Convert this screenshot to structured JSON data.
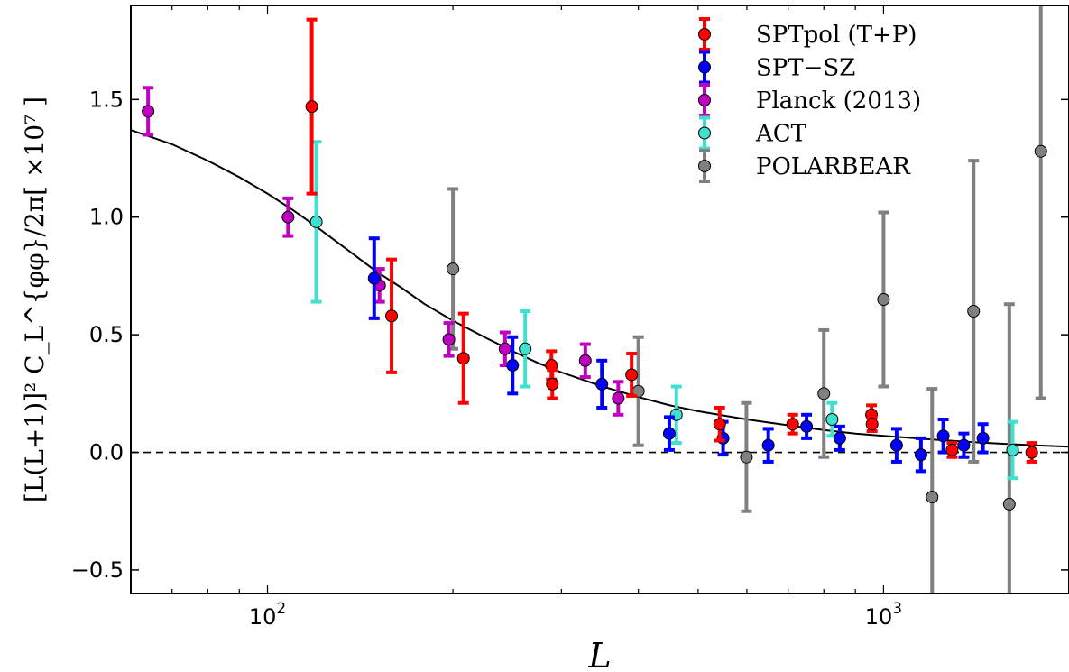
{
  "chart_data": {
    "type": "scatter",
    "xlabel": "L",
    "ylabel": "[L(L+1)]² C_L^{φφ}/2π[ ×10⁷ ]",
    "xscale": "log",
    "xlim": [
      60,
      2000
    ],
    "ylim": [
      -0.6,
      1.9
    ],
    "yticks": [
      -0.5,
      0.0,
      0.5,
      1.0,
      1.5
    ],
    "ytick_labels": [
      "−0.5",
      "0.0",
      "0.5",
      "1.0",
      "1.5"
    ],
    "xticks": [
      {
        "value": 100,
        "base": "10",
        "exp": "2"
      },
      {
        "value": 1000,
        "base": "10",
        "exp": "3"
      }
    ],
    "zero_line": 0,
    "legend_position": "top-right",
    "series": [
      {
        "name": "SPTpol (T+P)",
        "color": "#ff0000",
        "points": [
          {
            "x": 118,
            "y": 1.47,
            "err": 0.37
          },
          {
            "x": 159,
            "y": 0.58,
            "err": 0.24
          },
          {
            "x": 208,
            "y": 0.4,
            "err": 0.19
          },
          {
            "x": 289,
            "y": 0.37,
            "err": 0.06
          },
          {
            "x": 290,
            "y": 0.29,
            "err": 0.06
          },
          {
            "x": 390,
            "y": 0.33,
            "err": 0.09
          },
          {
            "x": 542,
            "y": 0.12,
            "err": 0.07
          },
          {
            "x": 712,
            "y": 0.12,
            "err": 0.04
          },
          {
            "x": 956,
            "y": 0.16,
            "err": 0.04
          },
          {
            "x": 958,
            "y": 0.12,
            "err": 0.03
          },
          {
            "x": 1292,
            "y": 0.01,
            "err": 0.03
          },
          {
            "x": 1740,
            "y": 0.0,
            "err": 0.04
          }
        ]
      },
      {
        "name": "SPT−SZ",
        "color": "#0000ff",
        "points": [
          {
            "x": 149,
            "y": 0.74,
            "err": 0.17
          },
          {
            "x": 250,
            "y": 0.37,
            "err": 0.12
          },
          {
            "x": 349,
            "y": 0.29,
            "err": 0.1
          },
          {
            "x": 449,
            "y": 0.08,
            "err": 0.07
          },
          {
            "x": 549,
            "y": 0.06,
            "err": 0.07
          },
          {
            "x": 650,
            "y": 0.03,
            "err": 0.07
          },
          {
            "x": 750,
            "y": 0.11,
            "err": 0.05
          },
          {
            "x": 849,
            "y": 0.06,
            "err": 0.05
          },
          {
            "x": 1050,
            "y": 0.03,
            "err": 0.07
          },
          {
            "x": 1150,
            "y": -0.01,
            "err": 0.07
          },
          {
            "x": 1250,
            "y": 0.07,
            "err": 0.07
          },
          {
            "x": 1350,
            "y": 0.03,
            "err": 0.05
          },
          {
            "x": 1450,
            "y": 0.06,
            "err": 0.06
          }
        ]
      },
      {
        "name": "Planck (2013)",
        "color": "#bf00bf",
        "points": [
          {
            "x": 64,
            "y": 1.45,
            "err": 0.1
          },
          {
            "x": 108,
            "y": 1.0,
            "err": 0.08
          },
          {
            "x": 152,
            "y": 0.71,
            "err": 0.07
          },
          {
            "x": 197,
            "y": 0.48,
            "err": 0.07
          },
          {
            "x": 243,
            "y": 0.44,
            "err": 0.07
          },
          {
            "x": 328,
            "y": 0.39,
            "err": 0.07
          },
          {
            "x": 371,
            "y": 0.23,
            "err": 0.07
          }
        ]
      },
      {
        "name": "ACT",
        "color": "#40e0d0",
        "points": [
          {
            "x": 120,
            "y": 0.98,
            "err": 0.34
          },
          {
            "x": 262,
            "y": 0.44,
            "err": 0.16
          },
          {
            "x": 461,
            "y": 0.16,
            "err": 0.12
          },
          {
            "x": 825,
            "y": 0.14,
            "err": 0.07
          },
          {
            "x": 1620,
            "y": 0.01,
            "err": 0.12
          }
        ]
      },
      {
        "name": "POLARBEAR",
        "color": "#808080",
        "points": [
          {
            "x": 200,
            "y": 0.78,
            "err": 0.34
          },
          {
            "x": 400,
            "y": 0.26,
            "err": 0.23
          },
          {
            "x": 599,
            "y": -0.02,
            "err": 0.23
          },
          {
            "x": 800,
            "y": 0.25,
            "err": 0.27
          },
          {
            "x": 1000,
            "y": 0.65,
            "err": 0.37
          },
          {
            "x": 1199,
            "y": -0.19,
            "err": 0.46
          },
          {
            "x": 1400,
            "y": 0.6,
            "err": 0.64
          },
          {
            "x": 1600,
            "y": -0.22,
            "err": 0.85
          },
          {
            "x": 1800,
            "y": 1.28,
            "err": 1.05
          }
        ]
      }
    ],
    "model_curve": [
      {
        "x": 60,
        "y": 1.37
      },
      {
        "x": 70,
        "y": 1.31
      },
      {
        "x": 80,
        "y": 1.24
      },
      {
        "x": 90,
        "y": 1.17
      },
      {
        "x": 100,
        "y": 1.1
      },
      {
        "x": 110,
        "y": 1.03
      },
      {
        "x": 120,
        "y": 0.96
      },
      {
        "x": 135,
        "y": 0.86
      },
      {
        "x": 150,
        "y": 0.77
      },
      {
        "x": 165,
        "y": 0.7
      },
      {
        "x": 180,
        "y": 0.63
      },
      {
        "x": 200,
        "y": 0.56
      },
      {
        "x": 225,
        "y": 0.49
      },
      {
        "x": 250,
        "y": 0.43
      },
      {
        "x": 275,
        "y": 0.38
      },
      {
        "x": 300,
        "y": 0.34
      },
      {
        "x": 350,
        "y": 0.28
      },
      {
        "x": 400,
        "y": 0.235
      },
      {
        "x": 450,
        "y": 0.2
      },
      {
        "x": 500,
        "y": 0.175
      },
      {
        "x": 600,
        "y": 0.14
      },
      {
        "x": 700,
        "y": 0.115
      },
      {
        "x": 800,
        "y": 0.095
      },
      {
        "x": 900,
        "y": 0.08
      },
      {
        "x": 1000,
        "y": 0.07
      },
      {
        "x": 1200,
        "y": 0.055
      },
      {
        "x": 1400,
        "y": 0.043
      },
      {
        "x": 1600,
        "y": 0.035
      },
      {
        "x": 1800,
        "y": 0.029
      },
      {
        "x": 2000,
        "y": 0.024
      }
    ]
  }
}
